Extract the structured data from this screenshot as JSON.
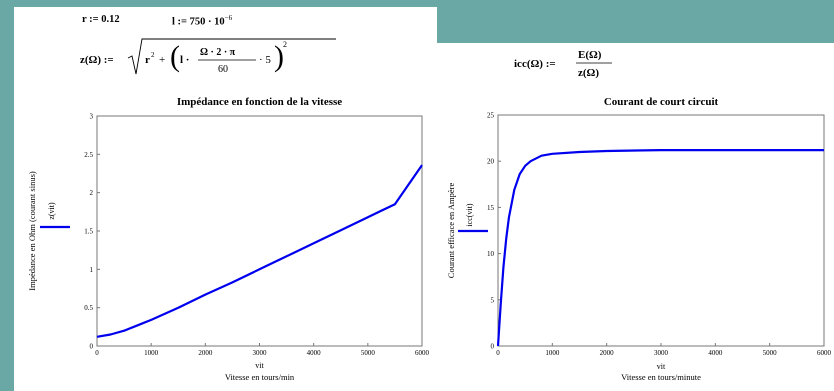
{
  "equations": {
    "r_def": "r := 0.12",
    "l_def": "l := 750 · 10",
    "l_exp": "−6",
    "z_lhs": "z(Ω) :=",
    "z_r": "r",
    "z_plus": "+",
    "z_l": "l ·",
    "z_num": "Ω · 2 · π",
    "z_den": "60",
    "z_times5": "· 5",
    "z_pow": "2",
    "icc_lhs": "icc(Ω) :=",
    "icc_num": "E(Ω)",
    "icc_den": "z(Ω)"
  },
  "chart_data": [
    {
      "type": "line",
      "title": "Impédance en fonction de la vitesse",
      "xlabel_var": "vit",
      "xlabel": "Vitesse en tours/min",
      "ylabel": "Impédance en Ohm (courant sinus)",
      "legend": "z(vit)",
      "legend_placement": "left",
      "xlim": [
        0,
        6000
      ],
      "ylim": [
        0,
        3
      ],
      "xticks": [
        "0",
        "1000",
        "2000",
        "3000",
        "4000",
        "5000",
        "6000"
      ],
      "yticks": [
        "0",
        "0.5",
        "1",
        "1.5",
        "2",
        "2.5",
        "3"
      ],
      "grid": false,
      "color": "#0000ee",
      "series": [
        {
          "x": [
            0,
            250,
            500,
            750,
            1000,
            1500,
            2000,
            2500,
            3000,
            3500,
            4000,
            4500,
            5000,
            5500,
            6000
          ],
          "y": [
            0.12,
            0.15,
            0.2,
            0.27,
            0.34,
            0.5,
            0.67,
            0.83,
            1.0,
            1.17,
            1.34,
            1.51,
            1.68,
            1.85,
            2.36
          ]
        }
      ]
    },
    {
      "type": "line",
      "title": "Courant de court circuit",
      "xlabel_var": "vit",
      "xlabel": "Vitesse en tours/minute",
      "ylabel": "Courant efficace en Ampère",
      "legend": "icc(vit)",
      "legend_placement": "left",
      "xlim": [
        0,
        6000
      ],
      "ylim": [
        0,
        25
      ],
      "xticks": [
        "0",
        "1000",
        "2000",
        "3000",
        "4000",
        "5000",
        "6000"
      ],
      "yticks": [
        "0",
        "5",
        "10",
        "15",
        "20",
        "25"
      ],
      "grid": false,
      "color": "#0000ee",
      "series": [
        {
          "x": [
            0,
            50,
            100,
            150,
            200,
            300,
            400,
            500,
            600,
            800,
            1000,
            1500,
            2000,
            3000,
            4000,
            5000,
            6000
          ],
          "y": [
            0,
            4.5,
            8.5,
            11.6,
            13.9,
            16.9,
            18.6,
            19.5,
            20.0,
            20.6,
            20.8,
            21.0,
            21.1,
            21.2,
            21.2,
            21.2,
            21.2
          ]
        }
      ]
    }
  ]
}
